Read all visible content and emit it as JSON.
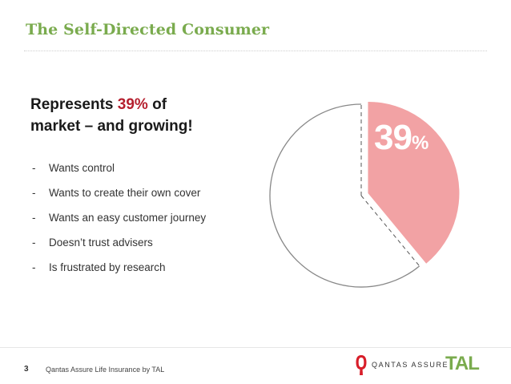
{
  "slide": {
    "title": "The Self-Directed Consumer",
    "headline": {
      "pre": "Represents ",
      "highlight": "39%",
      "post_line1": " of",
      "line2": "market – and growing!"
    },
    "bullets": [
      {
        "dash": "-",
        "text": "Wants control"
      },
      {
        "dash": "-",
        "text": "Wants to create their own cover"
      },
      {
        "dash": "-",
        "text": "Wants an easy customer journey"
      },
      {
        "dash": "-",
        "text": "Doesn’t trust advisers"
      },
      {
        "dash": "-",
        "text": "Is frustrated by research"
      }
    ]
  },
  "chart_data": {
    "type": "pie",
    "values": [
      39,
      61
    ],
    "highlight_label_number": "39",
    "highlight_label_symbol": "%",
    "highlight_color": "#f2a2a4",
    "rest_color": "#ffffff",
    "outline_color": "#888888"
  },
  "footer": {
    "page_number": "3",
    "text": "Qantas Assure Life Insurance by TAL",
    "qantas_logo_text": "QANTAS ASSURE",
    "tal_logo_text": "TAL"
  },
  "colors": {
    "title": "#7aab4e",
    "highlight": "#b51f2e",
    "qantas_red": "#d81e2a",
    "tal_green": "#7aab4e"
  }
}
